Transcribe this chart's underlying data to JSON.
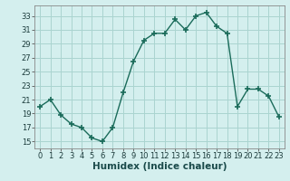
{
  "x": [
    0,
    1,
    2,
    3,
    4,
    5,
    6,
    7,
    8,
    9,
    10,
    11,
    12,
    13,
    14,
    15,
    16,
    17,
    18,
    19,
    20,
    21,
    22,
    23
  ],
  "y": [
    20.0,
    21.0,
    18.8,
    17.5,
    17.0,
    15.5,
    15.0,
    17.0,
    22.0,
    26.5,
    29.5,
    30.5,
    30.5,
    32.5,
    31.0,
    33.0,
    33.5,
    31.5,
    30.5,
    20.0,
    22.5,
    22.5,
    21.5,
    18.5
  ],
  "line_color": "#1a6b5a",
  "marker": "+",
  "marker_size": 4,
  "marker_lw": 1.2,
  "bg_color": "#d4efee",
  "grid_color": "#aad4d0",
  "xlabel": "Humidex (Indice chaleur)",
  "xlim": [
    -0.5,
    23.5
  ],
  "ylim": [
    14,
    34.5
  ],
  "yticks": [
    15,
    17,
    19,
    21,
    23,
    25,
    27,
    29,
    31,
    33
  ],
  "xticks": [
    0,
    1,
    2,
    3,
    4,
    5,
    6,
    7,
    8,
    9,
    10,
    11,
    12,
    13,
    14,
    15,
    16,
    17,
    18,
    19,
    20,
    21,
    22,
    23
  ],
  "xlabel_fontsize": 7.5,
  "tick_fontsize": 6,
  "linewidth": 1.0
}
